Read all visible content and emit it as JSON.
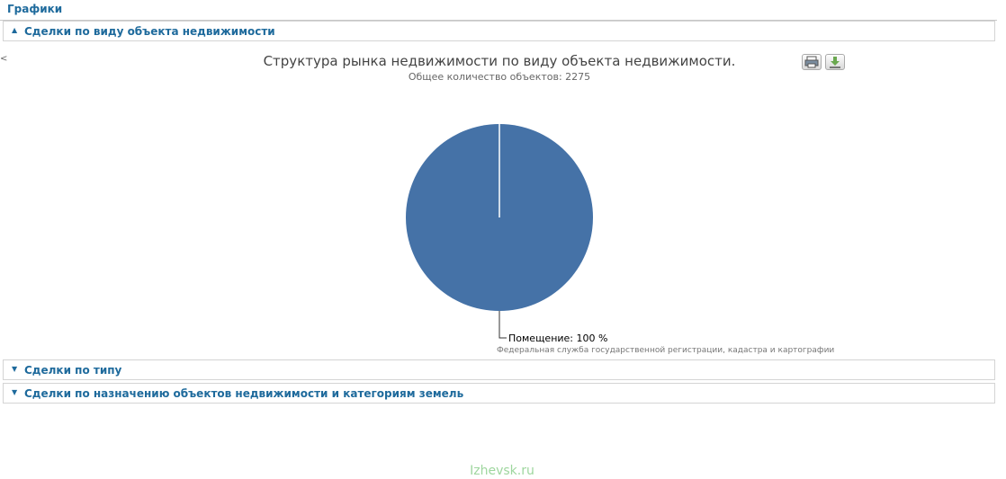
{
  "page": {
    "section_title": "Графики",
    "footer_site": "Izhevsk.ru"
  },
  "accordion": [
    {
      "label": "Сделки по виду объекта недвижимости",
      "expanded": true,
      "arrow": "▲"
    },
    {
      "label": "Сделки по типу",
      "expanded": false,
      "arrow": "▼"
    },
    {
      "label": "Сделки по назначению объектов недвижимости и категориям земель",
      "expanded": false,
      "arrow": "▼"
    }
  ],
  "toolbar": {
    "print_icon": "printer-icon",
    "export_icon": "download-icon"
  },
  "colors": {
    "accent": "#1e6a9c",
    "pie_slice": "#4572a7",
    "footer": "#9ed69e"
  },
  "chart_data": {
    "type": "pie",
    "title": "Структура рынка недвижимости по виду объекта недвижимости.",
    "subtitle": "Общее количество объектов: 2275",
    "slices": [
      {
        "name": "Помещение",
        "value": 100,
        "label": "Помещение: 100 %"
      }
    ],
    "credits": "Федеральная служба государственной регистрации, кадастра и картографии"
  }
}
